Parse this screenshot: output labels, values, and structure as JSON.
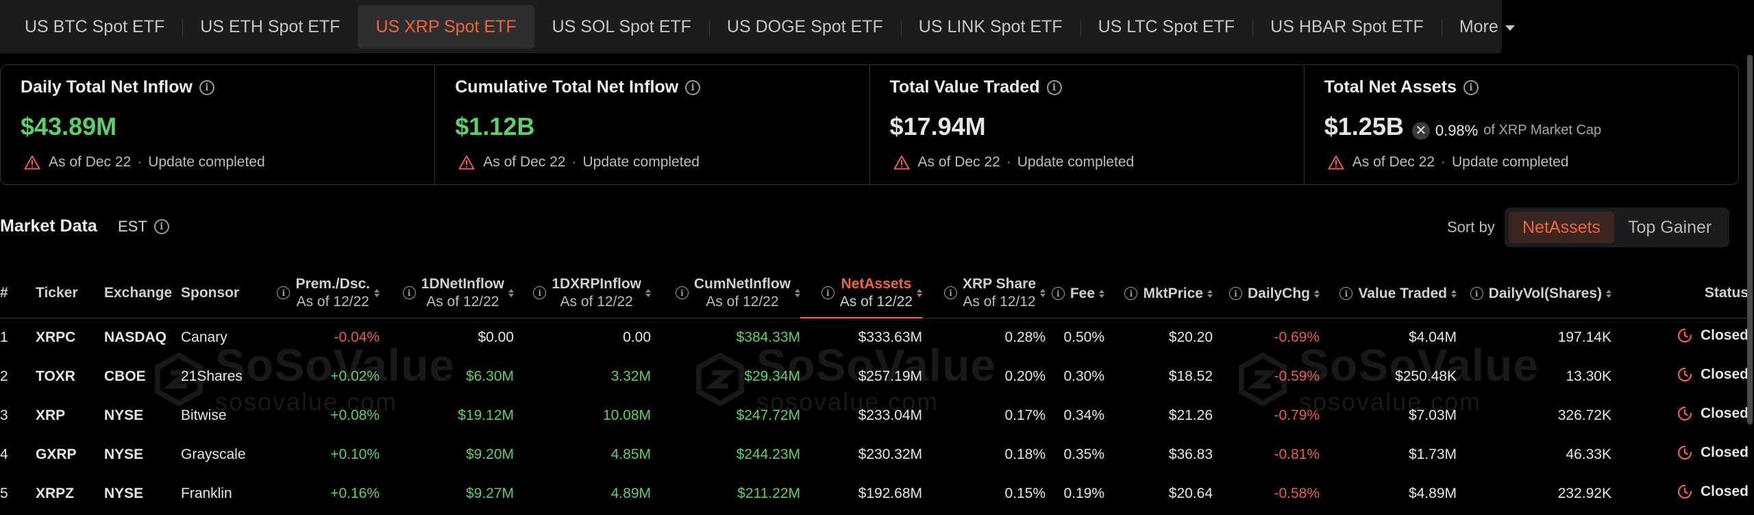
{
  "tabs": [
    {
      "label": "US BTC Spot ETF",
      "active": false
    },
    {
      "label": "US ETH Spot ETF",
      "active": false
    },
    {
      "label": "US XRP Spot ETF",
      "active": true
    },
    {
      "label": "US SOL Spot ETF",
      "active": false
    },
    {
      "label": "US DOGE Spot ETF",
      "active": false
    },
    {
      "label": "US LINK Spot ETF",
      "active": false
    },
    {
      "label": "US LTC Spot ETF",
      "active": false
    },
    {
      "label": "US HBAR Spot ETF",
      "active": false
    }
  ],
  "more_label": "More",
  "cards": {
    "daily": {
      "title": "Daily Total Net Inflow",
      "value": "$43.89M",
      "date": "As of Dec 22",
      "status": "Update completed"
    },
    "cumulative": {
      "title": "Cumulative Total Net Inflow",
      "value": "$1.12B",
      "date": "As of Dec 22",
      "status": "Update completed"
    },
    "traded": {
      "title": "Total Value Traded",
      "value": "$17.94M",
      "date": "As of Dec 22",
      "status": "Update completed"
    },
    "assets": {
      "title": "Total Net Assets",
      "value": "$1.25B",
      "cap_pct": "0.98%",
      "cap_label": "of XRP Market Cap",
      "date": "As of Dec 22",
      "status": "Update completed"
    }
  },
  "market": {
    "title": "Market Data",
    "timezone": "EST",
    "sort_label": "Sort by",
    "sort_options": [
      "NetAssets",
      "Top Gainer"
    ]
  },
  "columns": {
    "num": "#",
    "ticker": "Ticker",
    "exchange": "Exchange",
    "sponsor": "Sponsor",
    "prem": "Prem./Dsc.",
    "prem_sub": "As of 12/22",
    "net1d": "1DNetInflow",
    "net1d_sub": "As of 12/22",
    "xrp1d": "1DXRPInflow",
    "xrp1d_sub": "As of 12/22",
    "cum": "CumNetInflow",
    "cum_sub": "As of 12/22",
    "assets": "NetAssets",
    "assets_sub": "As of 12/22",
    "share": "XRP Share",
    "share_sub": "As of 12/12",
    "fee": "Fee",
    "price": "MktPrice",
    "chg": "DailyChg",
    "traded": "Value Traded",
    "vol": "DailyVol(Shares)",
    "status": "Status"
  },
  "rows": [
    {
      "num": "1",
      "ticker": "XRPC",
      "exchange": "NASDAQ",
      "sponsor": "Canary",
      "prem": "-0.04%",
      "net1d": "$0.00",
      "xrp1d": "0.00",
      "cum": "$384.33M",
      "assets": "$333.63M",
      "share": "0.28%",
      "fee": "0.50%",
      "price": "$20.20",
      "chg": "-0.69%",
      "traded": "$4.04M",
      "vol": "197.14K",
      "status": "Closed"
    },
    {
      "num": "2",
      "ticker": "TOXR",
      "exchange": "CBOE",
      "sponsor": "21Shares",
      "prem": "+0.02%",
      "net1d": "$6.30M",
      "xrp1d": "3.32M",
      "cum": "$29.34M",
      "assets": "$257.19M",
      "share": "0.20%",
      "fee": "0.30%",
      "price": "$18.52",
      "chg": "-0.59%",
      "traded": "$250.48K",
      "vol": "13.30K",
      "status": "Closed"
    },
    {
      "num": "3",
      "ticker": "XRP",
      "exchange": "NYSE",
      "sponsor": "Bitwise",
      "prem": "+0.08%",
      "net1d": "$19.12M",
      "xrp1d": "10.08M",
      "cum": "$247.72M",
      "assets": "$233.04M",
      "share": "0.17%",
      "fee": "0.34%",
      "price": "$21.26",
      "chg": "-0.79%",
      "traded": "$7.03M",
      "vol": "326.72K",
      "status": "Closed"
    },
    {
      "num": "4",
      "ticker": "GXRP",
      "exchange": "NYSE",
      "sponsor": "Grayscale",
      "prem": "+0.10%",
      "net1d": "$9.20M",
      "xrp1d": "4.85M",
      "cum": "$244.23M",
      "assets": "$230.32M",
      "share": "0.18%",
      "fee": "0.35%",
      "price": "$36.83",
      "chg": "-0.81%",
      "traded": "$1.73M",
      "vol": "46.33K",
      "status": "Closed"
    },
    {
      "num": "5",
      "ticker": "XRPZ",
      "exchange": "NYSE",
      "sponsor": "Franklin",
      "prem": "+0.16%",
      "net1d": "$9.27M",
      "xrp1d": "4.89M",
      "cum": "$211.22M",
      "assets": "$192.68M",
      "share": "0.15%",
      "fee": "0.19%",
      "price": "$20.64",
      "chg": "-0.58%",
      "traded": "$4.89M",
      "vol": "232.92K",
      "status": "Closed"
    }
  ],
  "watermark": {
    "brand": "SoSoValue",
    "site": "sosovalue.com"
  },
  "colors": {
    "accent": "#f0663a",
    "positive": "#5cd068",
    "negative": "#f05a4a",
    "background": "#000000",
    "panel": "#1c1c1e"
  }
}
